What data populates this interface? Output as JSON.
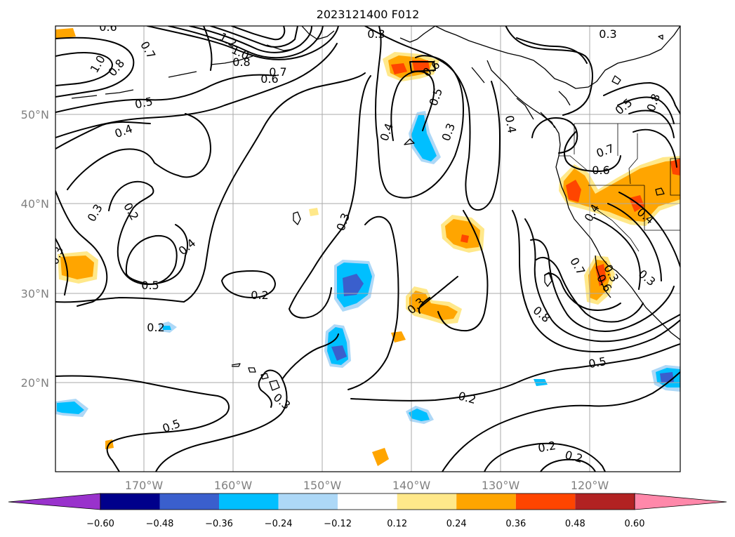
{
  "title": "2023121400 F012",
  "map": {
    "lon_labels": [
      "170°W",
      "160°W",
      "150°W",
      "140°W",
      "130°W",
      "120°W"
    ],
    "lat_labels": [
      "50°N",
      "40°N",
      "30°N",
      "20°N"
    ],
    "contour_labels": [
      "0.3",
      "0.3",
      "0.6",
      "0.8",
      "1.0",
      "0.7",
      "1.2",
      "1.0",
      "0.8",
      "0.7",
      "0.6",
      "0.5",
      "0.4",
      "0.3",
      "0.2",
      "0.3",
      "0.4",
      "0.5",
      "0.5",
      "0.2",
      "0.3",
      "0.4",
      "0.6",
      "0.5",
      "0.3",
      "0.3",
      "0.4",
      "0.3",
      "0.2",
      "0.2",
      "0.2",
      "0.5",
      "0.8",
      "0.7",
      "0.6",
      "0.4",
      "0.6",
      "0.7",
      "0.5",
      "0.8",
      "0.3",
      "0.2",
      "0.3",
      "0.4"
    ]
  },
  "colorbar": {
    "ticks": [
      "−0.60",
      "−0.48",
      "−0.36",
      "−0.24",
      "−0.12",
      "0.12",
      "0.24",
      "0.36",
      "0.48",
      "0.60"
    ],
    "colors": [
      "#9932cc",
      "#00008b",
      "#3a5fcd",
      "#00bfff",
      "#add8f7",
      "#ffffff",
      "#ffe88a",
      "#ffa500",
      "#ff4500",
      "#b22222",
      "#ff88aa"
    ]
  },
  "colors": {
    "pos_1": "#ffe88a",
    "pos_2": "#ffa500",
    "pos_3": "#ff4500",
    "neg_1": "#add8f7",
    "neg_2": "#00bfff",
    "neg_3": "#3a5fcd"
  }
}
